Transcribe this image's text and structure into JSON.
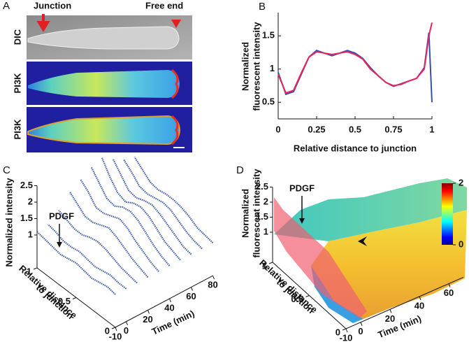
{
  "panel_a": {
    "label": "A",
    "junction": "Junction",
    "free_end": "Free end",
    "rows": [
      "DIC",
      "PI3K",
      "PI3K"
    ]
  },
  "chart_data": [
    {
      "label": "B",
      "type": "line",
      "y_label": [
        "Normalized",
        "fluorescent intensity"
      ],
      "x_label": "Relative distance to junction",
      "x": [
        0,
        0.05,
        0.1,
        0.15,
        0.2,
        0.25,
        0.3,
        0.35,
        0.4,
        0.45,
        0.5,
        0.55,
        0.6,
        0.65,
        0.7,
        0.75,
        0.8,
        0.85,
        0.9,
        0.95,
        0.98,
        1
      ],
      "series": [
        {
          "color": "#3b4fb0",
          "values": [
            0.95,
            0.62,
            0.66,
            0.92,
            1.18,
            1.28,
            1.24,
            1.2,
            1.24,
            1.28,
            1.24,
            1.16,
            1.02,
            0.9,
            0.8,
            0.74,
            0.78,
            0.82,
            0.86,
            1.02,
            1.55,
            0.5
          ]
        },
        {
          "color": "#e8245e",
          "values": [
            0.92,
            0.64,
            0.68,
            0.94,
            1.18,
            1.26,
            1.24,
            1.22,
            1.24,
            1.26,
            1.22,
            1.15,
            1.0,
            0.9,
            0.8,
            0.75,
            0.77,
            0.82,
            0.86,
            1.0,
            1.5,
            1.7
          ]
        }
      ],
      "xlim": [
        0,
        1
      ],
      "xticks": [
        0,
        0.25,
        0.5,
        0.75,
        1
      ],
      "ylim": [
        0.25,
        1.85
      ],
      "yticks": [
        0.5,
        1,
        1.5
      ]
    },
    {
      "label": "C",
      "type": "waterfall3d",
      "z_label": "Normalized intensity",
      "y_label": [
        "Relative distance",
        "to junction"
      ],
      "x_label": "Time (min)",
      "annotation": "PDGF",
      "color": "#3a55a8",
      "d": [
        0,
        0.1,
        0.2,
        0.3,
        0.4,
        0.5,
        0.6,
        0.7,
        0.8,
        0.9,
        1
      ],
      "t": [
        -10,
        0,
        10,
        20,
        30,
        40,
        50,
        60,
        70,
        80
      ],
      "profiles": [
        [
          1.0,
          1.05,
          1.0,
          0.95,
          1.0,
          1.05,
          1.0,
          0.95,
          1.0,
          1.05,
          1.1
        ],
        [
          1.0,
          1.0,
          1.05,
          1.0,
          0.95,
          1.0,
          1.05,
          1.0,
          1.0,
          1.1,
          1.15
        ],
        [
          1.0,
          1.05,
          1.1,
          1.2,
          1.3,
          1.35,
          1.3,
          1.2,
          1.2,
          1.3,
          1.4
        ],
        [
          1.0,
          1.1,
          1.2,
          1.35,
          1.5,
          1.6,
          1.5,
          1.4,
          1.4,
          1.6,
          1.8
        ],
        [
          1.0,
          1.1,
          1.25,
          1.4,
          1.6,
          1.7,
          1.6,
          1.5,
          1.5,
          1.8,
          2.0
        ],
        [
          1.0,
          1.1,
          1.25,
          1.45,
          1.65,
          1.75,
          1.7,
          1.55,
          1.6,
          1.9,
          2.2
        ],
        [
          1.0,
          1.1,
          1.2,
          1.4,
          1.6,
          1.7,
          1.65,
          1.5,
          1.6,
          1.9,
          2.3
        ],
        [
          1.0,
          1.05,
          1.2,
          1.35,
          1.5,
          1.6,
          1.55,
          1.45,
          1.5,
          1.8,
          2.1
        ],
        [
          1.0,
          1.05,
          1.15,
          1.3,
          1.45,
          1.5,
          1.45,
          1.4,
          1.45,
          1.7,
          1.9
        ],
        [
          1.0,
          1.05,
          1.1,
          1.25,
          1.35,
          1.4,
          1.4,
          1.35,
          1.4,
          1.6,
          1.8
        ]
      ],
      "xlim": [
        -10,
        80
      ],
      "xticks": [
        -10,
        0,
        20,
        40,
        60,
        80
      ],
      "ylim": [
        0,
        1
      ],
      "yticks": [
        0,
        0.5,
        1
      ],
      "zlim": [
        0,
        2.5
      ],
      "zticks": [
        1,
        1.5,
        2,
        2.5
      ]
    },
    {
      "label": "D",
      "type": "surface3d",
      "z_label": [
        "Normalized",
        "fluorescent intensity"
      ],
      "y_label": [
        "Relative distance",
        "to junction"
      ],
      "x_label": "Time (min)",
      "annotation": "PDGF",
      "xlim": [
        -10,
        70
      ],
      "xticks": [
        -10,
        0,
        20,
        40,
        60
      ],
      "ylim": [
        0,
        1
      ],
      "yticks": [
        0,
        0.5,
        1
      ],
      "zlim": [
        0,
        2.5
      ],
      "zticks": [
        1,
        1.5,
        2,
        2.5
      ],
      "colorbar": {
        "lim": [
          0,
          2
        ],
        "ticks": [
          0,
          2
        ]
      }
    }
  ]
}
